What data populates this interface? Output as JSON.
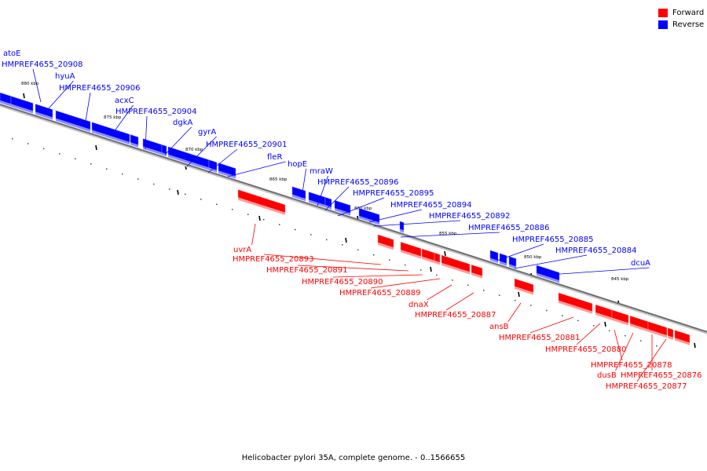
{
  "title": "Helicobacter pylori 35A, complete genome. - 0..1566655",
  "legend": [
    {
      "label": "Forward",
      "color": "#ff0000"
    },
    {
      "label": "Reverse",
      "color": "#0000ff"
    }
  ],
  "ticks": [
    "880 kbp",
    "875 kbp",
    "870 kbp",
    "865 kbp",
    "860 kbp",
    "855 kbp",
    "850 kbp",
    "845 kbp"
  ],
  "reverse_genes": [
    "atoE",
    "HMPREF4655_20908",
    "hyuA",
    "HMPREF4655_20906",
    "acxC",
    "HMPREF4655_20904",
    "dgkA",
    "gyrA",
    "HMPREF4655_20901",
    "fleR",
    "hopE",
    "mraW",
    "HMPREF4655_20896",
    "HMPREF4655_20895",
    "HMPREF4655_20894",
    "HMPREF4655_20892",
    "HMPREF4655_20886",
    "HMPREF4655_20885",
    "HMPREF4655_20884",
    "dcuA"
  ],
  "forward_genes": [
    "uvrA",
    "HMPREF4655_20893",
    "HMPREF4655_20891",
    "HMPREF4655_20890",
    "HMPREF4655_20889",
    "dnaX",
    "HMPREF4655_20887",
    "ansB",
    "HMPREF4655_20881",
    "HMPREF4655_20880",
    "HMPREF4655_20878",
    "dusB",
    "HMPREF4655_20876",
    "HMPREF4655_20877"
  ],
  "colors": {
    "forward": "#ff0000",
    "reverse": "#0000ff",
    "backbone": "#808080"
  }
}
